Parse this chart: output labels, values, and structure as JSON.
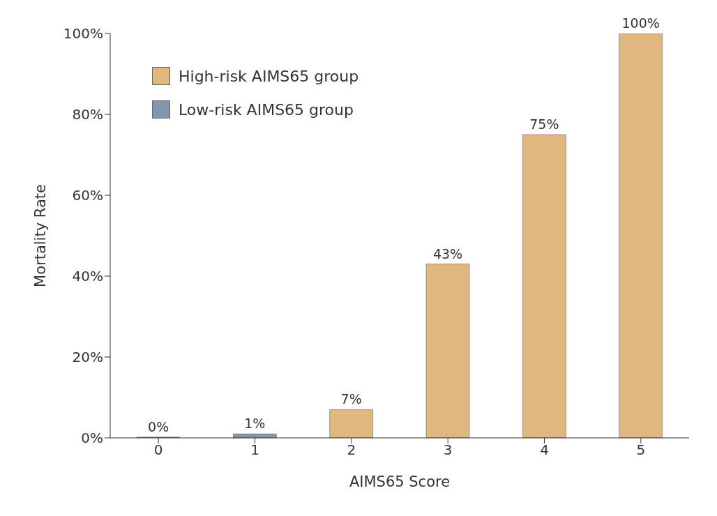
{
  "chart_data": {
    "type": "bar",
    "xlabel": "AIMS65 Score",
    "ylabel": "Mortality Rate",
    "categories": [
      "0",
      "1",
      "2",
      "3",
      "4",
      "5"
    ],
    "series": [
      {
        "name": "High-risk AIMS65 group",
        "color": "#e0b77e",
        "values": [
          null,
          null,
          7,
          43,
          75,
          100
        ],
        "value_labels": [
          null,
          null,
          "7%",
          "43%",
          "75%",
          "100%"
        ]
      },
      {
        "name": "Low-risk AIMS65 group",
        "color": "#7f97ad",
        "values": [
          0,
          1,
          null,
          null,
          null,
          null
        ],
        "value_labels": [
          "0%",
          "1%",
          null,
          null,
          null,
          null
        ]
      }
    ],
    "stacked": true,
    "ylim": [
      0,
      100
    ],
    "yticks": [
      {
        "value": 0,
        "label": "0%"
      },
      {
        "value": 20,
        "label": "20%"
      },
      {
        "value": 40,
        "label": "40%"
      },
      {
        "value": 60,
        "label": "60%"
      },
      {
        "value": 80,
        "label": "80%"
      },
      {
        "value": 100,
        "label": "100%"
      }
    ],
    "grid": false,
    "legend": "top left"
  }
}
